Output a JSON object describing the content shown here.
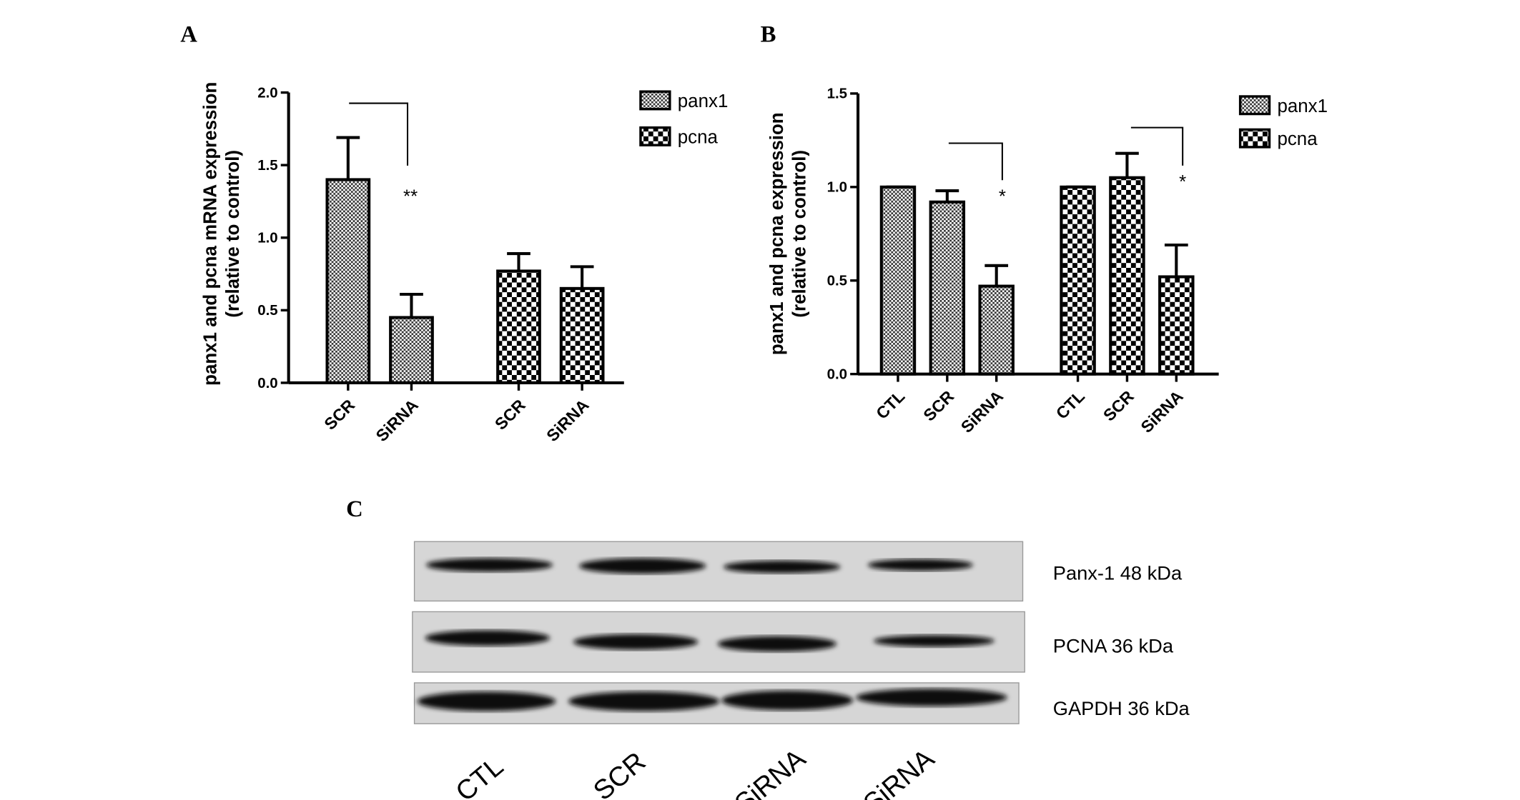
{
  "chart_data": [
    {
      "panel": "A",
      "type": "bar",
      "ylabel": [
        "panx1 and pcna mRNA expression",
        "(relative to control)"
      ],
      "categories": [
        "SCR",
        "SiRNA",
        "SCR",
        "SiRNA"
      ],
      "series": [
        {
          "name": "panx1",
          "color": "#000000",
          "pattern": "fine",
          "values": [
            1.4,
            0.45,
            null,
            null
          ],
          "errors": [
            0.29,
            0.16,
            null,
            null
          ]
        },
        {
          "name": "pcna",
          "color": "#000000",
          "pattern": "coarse",
          "values": [
            null,
            null,
            0.77,
            0.65
          ],
          "errors": [
            null,
            null,
            0.12,
            0.15
          ]
        }
      ],
      "ylim": [
        0,
        2
      ],
      "yticks": [
        {
          "value": 0,
          "label": "0.0"
        },
        {
          "value": 0.5,
          "label": "0.5"
        },
        {
          "value": 1,
          "label": "1.0"
        },
        {
          "value": 1.5,
          "label": "1.5"
        },
        {
          "value": 2,
          "label": "2.0"
        }
      ],
      "annotations": [
        "**"
      ]
    },
    {
      "panel": "B",
      "type": "bar",
      "ylabel": [
        "panx1 and pcna expression",
        "(relative to control)"
      ],
      "categories": [
        "CTL",
        "SCR",
        "SiRNA",
        "CTL",
        "SCR",
        "SiRNA"
      ],
      "series": [
        {
          "name": "panx1",
          "color": "#000000",
          "pattern": "fine",
          "values": [
            1.0,
            0.92,
            0.47,
            null,
            null,
            null
          ],
          "errors": [
            0,
            0.06,
            0.11,
            null,
            null,
            null
          ]
        },
        {
          "name": "pcna",
          "color": "#000000",
          "pattern": "coarse",
          "values": [
            null,
            null,
            null,
            1.0,
            1.05,
            0.52
          ],
          "errors": [
            null,
            null,
            null,
            0,
            0.13,
            0.17
          ]
        }
      ],
      "ylim": [
        0,
        1.5
      ],
      "yticks": [
        {
          "value": 0,
          "label": "0.0"
        },
        {
          "value": 0.5,
          "label": "0.5"
        },
        {
          "value": 1,
          "label": "1.0"
        },
        {
          "value": 1.5,
          "label": "1.5"
        }
      ],
      "annotations": [
        "*",
        "*"
      ]
    }
  ],
  "blot": {
    "panel": "C",
    "rows": [
      "Panx-1  48 kDa",
      "PCNA  36 kDa",
      "GAPDH  36 kDa"
    ],
    "lanes": [
      "CTL",
      "SCR",
      "SiRNA",
      "SiRNA"
    ]
  }
}
